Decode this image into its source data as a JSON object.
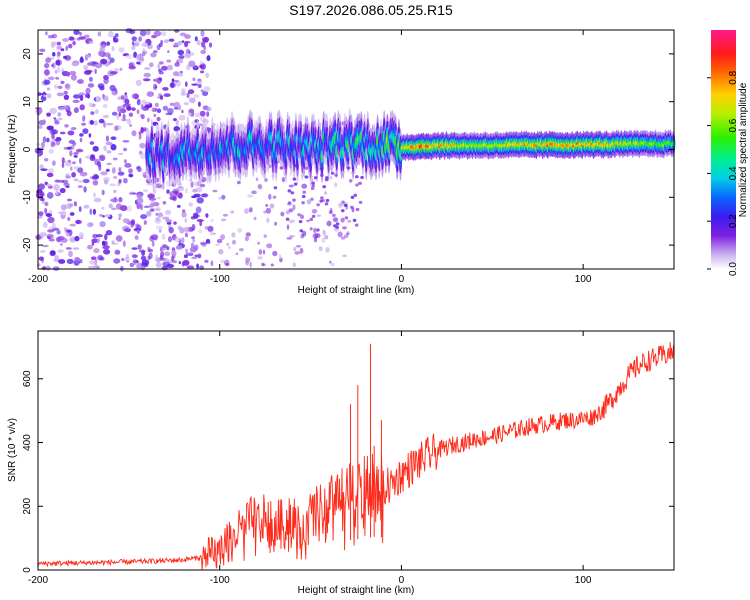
{
  "figure": {
    "title": "S197.2026.086.05.25.R15"
  },
  "chart_data": [
    {
      "type": "heatmap",
      "title": "S197.2026.086.05.25.R15",
      "xlabel": "Height of straight line (km)",
      "ylabel": "Frequency (Hz)",
      "xlim": [
        -200,
        150
      ],
      "ylim": [
        -25,
        25
      ],
      "xticks": [
        -200,
        -100,
        0,
        100
      ],
      "xtick_labels": [
        "-200",
        "-100",
        "0",
        "100"
      ],
      "yticks": [
        -20,
        -10,
        0,
        10,
        20
      ],
      "ytick_labels": [
        "-20",
        "-10",
        "0",
        "10",
        "20"
      ],
      "colorbar": {
        "label": "Normalized spectral amplitude",
        "range": [
          0,
          1
        ],
        "ticks": [
          0.0,
          0.2,
          0.4,
          0.6,
          0.8
        ],
        "tick_labels": [
          "0.0",
          "0.2",
          "0.4",
          "0.6",
          "0.8"
        ]
      },
      "ridge": {
        "description_free": true,
        "center_freq_hz": [
          {
            "x": -130,
            "f": -1.2
          },
          {
            "x": -110,
            "f": 0.2
          },
          {
            "x": -90,
            "f": 0.8
          },
          {
            "x": -70,
            "f": 1.0
          },
          {
            "x": -50,
            "f": 0.0
          },
          {
            "x": -30,
            "f": 1.5
          },
          {
            "x": -15,
            "f": 1.0
          },
          {
            "x": 0,
            "f": 0.5
          },
          {
            "x": 20,
            "f": 0.8
          },
          {
            "x": 60,
            "f": 0.9
          },
          {
            "x": 100,
            "f": 1.0
          },
          {
            "x": 150,
            "f": 1.2
          }
        ],
        "peak_amplitude": [
          {
            "x": -130,
            "a": 0.35
          },
          {
            "x": -100,
            "a": 0.4
          },
          {
            "x": -60,
            "a": 0.4
          },
          {
            "x": -30,
            "a": 0.45
          },
          {
            "x": -10,
            "a": 0.55
          },
          {
            "x": 10,
            "a": 0.85
          },
          {
            "x": 40,
            "a": 0.65
          },
          {
            "x": 85,
            "a": 0.8
          },
          {
            "x": 110,
            "a": 0.75
          },
          {
            "x": 150,
            "a": 0.55
          }
        ]
      }
    },
    {
      "type": "line",
      "xlabel": "Height of straight line (km)",
      "ylabel": "SNR (10 * v/v)",
      "xlim": [
        -200,
        150
      ],
      "ylim": [
        0,
        750
      ],
      "xticks": [
        -200,
        -100,
        0,
        100
      ],
      "xtick_labels": [
        "-200",
        "-100",
        "0",
        "100"
      ],
      "yticks": [
        0,
        200,
        400,
        600
      ],
      "ytick_labels": [
        "0",
        "200",
        "400",
        "600"
      ],
      "series": [
        {
          "name": "SNR",
          "color": "#ff2a1a",
          "x": [
            -200,
            -180,
            -160,
            -140,
            -120,
            -110,
            -100,
            -95,
            -90,
            -85,
            -80,
            -75,
            -70,
            -65,
            -60,
            -55,
            -50,
            -45,
            -40,
            -35,
            -30,
            -25,
            -20,
            -15,
            -10,
            -5,
            0,
            5,
            10,
            15,
            20,
            25,
            30,
            35,
            40,
            50,
            60,
            70,
            80,
            90,
            95,
            100,
            105,
            110,
            115,
            120,
            125,
            130,
            135,
            140,
            145,
            150
          ],
          "y": [
            20,
            22,
            24,
            27,
            32,
            40,
            55,
            90,
            120,
            150,
            170,
            160,
            150,
            140,
            155,
            150,
            160,
            175,
            200,
            215,
            230,
            240,
            250,
            260,
            255,
            270,
            300,
            320,
            340,
            360,
            375,
            385,
            395,
            400,
            410,
            420,
            435,
            450,
            460,
            470,
            470,
            475,
            480,
            500,
            530,
            570,
            610,
            640,
            655,
            665,
            675,
            685
          ]
        }
      ],
      "spikes": [
        {
          "x": -28,
          "y": 520
        },
        {
          "x": -24,
          "y": 580
        },
        {
          "x": -17,
          "y": 710
        },
        {
          "x": -15,
          "y": 390
        },
        {
          "x": -11,
          "y": 470
        }
      ]
    }
  ]
}
